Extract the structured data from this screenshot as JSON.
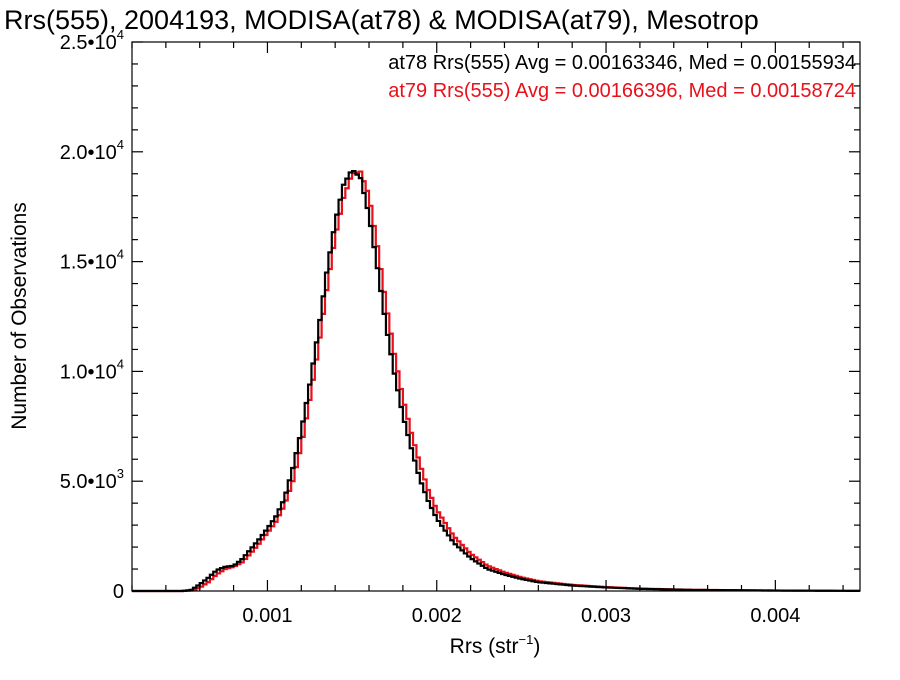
{
  "chart_data": {
    "type": "line",
    "title": "Rrs(555), 2004193, MODISA(at78) & MODISA(at79), Mesotrop",
    "xlabel": "Rrs (str",
    "xlabel_sup": "−1",
    "xlabel_close": ")",
    "ylabel": "Number of Observations",
    "xlim": [
      0.0002,
      0.0045
    ],
    "ylim": [
      0,
      25000
    ],
    "grid": false,
    "legend_position": "top-right",
    "x_ticks": [
      {
        "value": 0.001,
        "label": "0.001"
      },
      {
        "value": 0.002,
        "label": "0.002"
      },
      {
        "value": 0.003,
        "label": "0.003"
      },
      {
        "value": 0.004,
        "label": "0.004"
      }
    ],
    "y_ticks": [
      {
        "value": 0,
        "mant": "0",
        "exp": ""
      },
      {
        "value": 5000,
        "mant": "5.0•10",
        "exp": "3"
      },
      {
        "value": 10000,
        "mant": "1.0•10",
        "exp": "4"
      },
      {
        "value": 15000,
        "mant": "1.5•10",
        "exp": "4"
      },
      {
        "value": 20000,
        "mant": "2.0•10",
        "exp": "4"
      },
      {
        "value": 25000,
        "mant": "2.5•10",
        "exp": "4"
      }
    ],
    "legend": [
      {
        "text": "at78 Rrs(555) Avg = 0.00163346, Med = 0.00155934",
        "color": "#000000"
      },
      {
        "text": "at79 Rrs(555) Avg = 0.00166396, Med = 0.00158724",
        "color": "#e8101a"
      }
    ],
    "series": [
      {
        "color": "#000000",
        "x": [
          0.0002,
          0.0005,
          0.00055,
          0.0006,
          0.00065,
          0.0007,
          0.00075,
          0.0008,
          0.00085,
          0.0009,
          0.00095,
          0.001,
          0.00105,
          0.0011,
          0.00115,
          0.0012,
          0.00125,
          0.0013,
          0.00135,
          0.0014,
          0.00145,
          0.0015,
          0.00155,
          0.0016,
          0.00165,
          0.0017,
          0.00175,
          0.0018,
          0.00185,
          0.0019,
          0.00195,
          0.002,
          0.0021,
          0.0022,
          0.0023,
          0.0024,
          0.0025,
          0.0026,
          0.0028,
          0.003,
          0.0032,
          0.0035,
          0.004,
          0.0045
        ],
        "y": [
          0,
          0,
          50,
          300,
          600,
          950,
          1100,
          1150,
          1450,
          1900,
          2350,
          2850,
          3400,
          4200,
          5600,
          7300,
          9400,
          11800,
          14500,
          16800,
          18500,
          19200,
          18800,
          17100,
          14700,
          12100,
          9900,
          8000,
          6500,
          5100,
          4100,
          3300,
          2200,
          1500,
          1000,
          750,
          550,
          400,
          250,
          160,
          100,
          50,
          20,
          5
        ]
      },
      {
        "color": "#e8101a",
        "x": [
          0.0002,
          0.0005,
          0.00055,
          0.0006,
          0.00065,
          0.0007,
          0.00075,
          0.0008,
          0.00085,
          0.0009,
          0.00095,
          0.001,
          0.00105,
          0.0011,
          0.00115,
          0.0012,
          0.00125,
          0.0013,
          0.00135,
          0.0014,
          0.00145,
          0.0015,
          0.00155,
          0.0016,
          0.00165,
          0.0017,
          0.00175,
          0.0018,
          0.00185,
          0.0019,
          0.00195,
          0.002,
          0.0021,
          0.0022,
          0.0023,
          0.0024,
          0.0025,
          0.0026,
          0.0028,
          0.003,
          0.0032,
          0.0035,
          0.004,
          0.0045
        ],
        "y": [
          0,
          0,
          20,
          150,
          400,
          750,
          1000,
          1100,
          1300,
          1700,
          2150,
          2650,
          3150,
          3900,
          5000,
          6600,
          8700,
          11000,
          13700,
          16100,
          17900,
          19000,
          19100,
          18000,
          15700,
          13100,
          10800,
          8800,
          7200,
          5800,
          4600,
          3700,
          2500,
          1700,
          1150,
          850,
          620,
          450,
          280,
          180,
          110,
          55,
          22,
          5
        ]
      }
    ]
  }
}
